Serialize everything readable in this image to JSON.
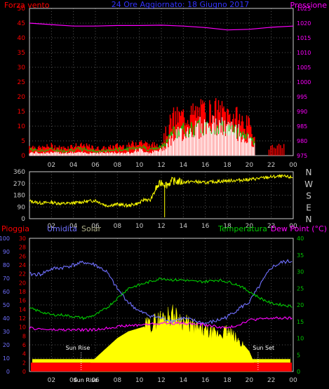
{
  "colors": {
    "wind": "#ff0000",
    "gust_green": "#00cc00",
    "wind_avg": "#ffffff",
    "pressure": "#ff00ff",
    "direction": "#ffff00",
    "rain": "#ff0000",
    "humidity": "#7070ff",
    "solar": "#ffff00",
    "temperature": "#00cc00",
    "dewpoint": "#ff00ff",
    "text_grey": "#c8c8c8",
    "title_blue": "#3333ff",
    "green_axis": "#00cc00"
  },
  "chart_data": [
    {
      "type": "area",
      "title": "24 Ore Aggiornato: 18 Giugno 2017",
      "left_axis_title": "Forza vento",
      "right_axis_title": "Pressione",
      "ylim_left": [
        0,
        50
      ],
      "left_ticks": [
        "0",
        "5",
        "10",
        "15",
        "20",
        "25",
        "30",
        "35",
        "40",
        "45",
        "50"
      ],
      "ylim_right": [
        975,
        1025
      ],
      "right_ticks": [
        "975",
        "980",
        "985",
        "990",
        "995",
        "1000",
        "1005",
        "1010",
        "1015",
        "1020",
        "1025"
      ],
      "x_ticks": [
        "02",
        "04",
        "06",
        "08",
        "10",
        "12",
        "14",
        "16",
        "18",
        "20",
        "22",
        "00"
      ],
      "series": [
        {
          "name": "Forza vento",
          "x": [
            0,
            1,
            2,
            3,
            4,
            5,
            6,
            7,
            8,
            9,
            10,
            11,
            12,
            13,
            14,
            15,
            16,
            17,
            18,
            19,
            20,
            21,
            22,
            23,
            24
          ],
          "values": [
            4,
            3,
            4,
            3,
            4,
            4,
            3,
            3,
            4,
            4,
            6,
            4,
            5,
            15,
            16,
            17,
            18,
            18,
            17,
            15,
            12,
            3,
            2,
            2,
            1
          ]
        },
        {
          "name": "media",
          "x": [
            0,
            1,
            2,
            3,
            4,
            5,
            6,
            7,
            8,
            9,
            10,
            11,
            12,
            13,
            14,
            15,
            16,
            17,
            18,
            19,
            20,
            21,
            22,
            23,
            24
          ],
          "values": [
            1,
            1,
            1,
            1,
            1,
            1,
            1,
            1,
            1,
            1,
            2,
            1,
            2,
            6,
            8,
            9,
            10,
            10,
            9,
            8,
            5,
            1,
            1,
            0,
            0
          ]
        },
        {
          "name": "Pressione",
          "x": [
            0,
            2,
            4,
            6,
            8,
            10,
            12,
            14,
            16,
            18,
            20,
            22,
            24
          ],
          "values": [
            1020,
            1019.5,
            1019,
            1019,
            1019.2,
            1019.2,
            1019.3,
            1019,
            1018.5,
            1017.7,
            1017.9,
            1018.6,
            1019
          ]
        }
      ]
    },
    {
      "type": "scatter",
      "ylim": [
        0,
        360
      ],
      "y_ticks": [
        "0",
        "90",
        "180",
        "270",
        "360"
      ],
      "direction_labels": [
        "N",
        "W",
        "S",
        "E",
        "N"
      ],
      "x_ticks": [
        "02",
        "04",
        "06",
        "08",
        "10",
        "12",
        "14",
        "16",
        "18",
        "20",
        "22",
        "00"
      ],
      "series": [
        {
          "x": [
            0,
            1,
            2,
            3,
            4,
            5,
            6,
            7,
            8,
            9,
            10,
            10.5,
            11,
            11.5,
            12,
            12.5,
            13,
            14,
            15,
            16,
            17,
            18,
            19,
            20,
            21,
            22,
            23,
            24
          ],
          "values": [
            135,
            120,
            125,
            115,
            120,
            130,
            140,
            100,
            110,
            100,
            120,
            150,
            140,
            230,
            280,
            260,
            290,
            280,
            285,
            275,
            285,
            290,
            295,
            300,
            310,
            320,
            325,
            315
          ]
        }
      ]
    },
    {
      "type": "line",
      "labels": {
        "rain": "Pioggia",
        "humidity": "Umidita",
        "solar": "Solar",
        "temperature": "Temperatura",
        "dewpoint": "Dew Point (°C)"
      },
      "humidity_axis": [
        "0",
        "10",
        "20",
        "30",
        "40",
        "50",
        "60",
        "70",
        "80",
        "90",
        "100"
      ],
      "rain_axis": [
        "0",
        "2",
        "4",
        "6",
        "8",
        "10",
        "12",
        "14",
        "16",
        "18",
        "20",
        "22",
        "24",
        "26",
        "28",
        "30"
      ],
      "temp_axis": [
        "0",
        "5",
        "10",
        "15",
        "20",
        "25",
        "30",
        "35",
        "40"
      ],
      "x_ticks": [
        "02",
        "04",
        "06",
        "08",
        "10",
        "12",
        "14",
        "16",
        "18",
        "20",
        "22",
        "00"
      ],
      "annotations": [
        "Sun Rise",
        "Sun Set",
        "Sun Rise"
      ],
      "series": [
        {
          "name": "Umidita",
          "x": [
            0,
            1,
            2,
            3,
            4,
            5,
            6,
            7,
            8,
            9,
            10,
            11,
            12,
            13,
            14,
            15,
            16,
            17,
            18,
            19,
            20,
            21,
            22,
            23,
            24
          ],
          "values": [
            73,
            73,
            77,
            78,
            80,
            82,
            80,
            75,
            62,
            52,
            45,
            42,
            40,
            38,
            40,
            38,
            36,
            38,
            41,
            47,
            52,
            65,
            78,
            82,
            83
          ]
        },
        {
          "name": "Temperatura",
          "x": [
            0,
            1,
            2,
            3,
            4,
            5,
            6,
            7,
            8,
            9,
            10,
            11,
            12,
            13,
            14,
            15,
            16,
            17,
            18,
            19,
            20,
            21,
            22,
            23,
            24
          ],
          "values": [
            19,
            18,
            17,
            17,
            16.5,
            16,
            17,
            19,
            22,
            25,
            26,
            27,
            28,
            27.5,
            27.5,
            27,
            27,
            27.5,
            27,
            26,
            24,
            22,
            20.5,
            20,
            19.5
          ]
        },
        {
          "name": "Dew Point",
          "x": [
            0,
            2,
            4,
            6,
            8,
            10,
            12,
            14,
            16,
            18,
            19,
            20,
            22,
            24
          ],
          "values": [
            13,
            12.5,
            12.5,
            12.5,
            13.5,
            14,
            14.5,
            14.5,
            14,
            13,
            14,
            15.5,
            16,
            16
          ]
        },
        {
          "name": "Solar",
          "x": [
            4.7,
            6,
            8,
            9,
            10,
            11,
            12,
            13,
            14,
            15,
            16,
            17,
            18,
            19,
            19.5,
            20,
            20.5,
            20.8
          ],
          "values": [
            0,
            4,
            10,
            12,
            13,
            14,
            16,
            17,
            15,
            13,
            12,
            11,
            12,
            9,
            8,
            6,
            2,
            0
          ]
        },
        {
          "name": "Pioggia",
          "x": [
            0,
            24
          ],
          "values": [
            1,
            1
          ]
        }
      ]
    }
  ]
}
